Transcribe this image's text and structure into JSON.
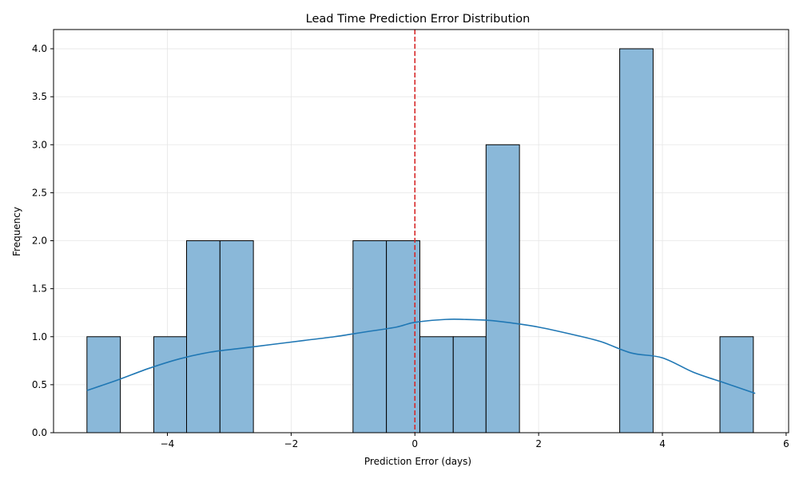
{
  "chart_data": {
    "type": "bar",
    "title": "Lead Time Prediction Error Distribution",
    "xlabel": "Prediction Error (days)",
    "ylabel": "Frequency",
    "xlim": [
      -5.84,
      6.04
    ],
    "ylim": [
      0,
      4.2
    ],
    "x_ticks": [
      -4,
      -2,
      0,
      2,
      4,
      6
    ],
    "x_tick_labels": [
      "−4",
      "−2",
      "0",
      "2",
      "4",
      "6"
    ],
    "y_ticks": [
      0.0,
      0.5,
      1.0,
      1.5,
      2.0,
      2.5,
      3.0,
      3.5,
      4.0
    ],
    "y_tick_labels": [
      "0.0",
      "0.5",
      "1.0",
      "1.5",
      "2.0",
      "2.5",
      "3.0",
      "3.5",
      "4.0"
    ],
    "grid": true,
    "bins": [
      {
        "x0": -5.3,
        "x1": -4.76,
        "count": 1
      },
      {
        "x0": -4.22,
        "x1": -3.69,
        "count": 1
      },
      {
        "x0": -3.69,
        "x1": -3.15,
        "count": 2
      },
      {
        "x0": -3.15,
        "x1": -2.61,
        "count": 2
      },
      {
        "x0": -1.0,
        "x1": -0.46,
        "count": 2
      },
      {
        "x0": -0.46,
        "x1": 0.08,
        "count": 2
      },
      {
        "x0": 0.08,
        "x1": 0.62,
        "count": 1
      },
      {
        "x0": 0.62,
        "x1": 1.15,
        "count": 1
      },
      {
        "x0": 1.15,
        "x1": 1.69,
        "count": 3
      },
      {
        "x0": 3.31,
        "x1": 3.85,
        "count": 4
      },
      {
        "x0": 4.93,
        "x1": 5.47,
        "count": 1
      }
    ],
    "kde": {
      "x": [
        -5.3,
        -4.8,
        -4.3,
        -3.8,
        -3.3,
        -2.8,
        -2.3,
        -1.8,
        -1.3,
        -0.8,
        -0.3,
        0.0,
        0.5,
        0.8,
        1.2,
        1.6,
        2.0,
        2.5,
        3.0,
        3.5,
        4.0,
        4.5,
        5.0,
        5.5
      ],
      "y": [
        0.44,
        0.55,
        0.67,
        0.77,
        0.84,
        0.88,
        0.92,
        0.96,
        1.0,
        1.05,
        1.1,
        1.15,
        1.18,
        1.18,
        1.17,
        1.14,
        1.1,
        1.03,
        0.95,
        0.83,
        0.78,
        0.63,
        0.52,
        0.41
      ]
    },
    "reference_line": {
      "x": 0,
      "style": "dashed",
      "color": "#d62728"
    },
    "colors": {
      "bar_fill": "#8ab8d9",
      "bar_edge": "#000000",
      "kde_line": "#1f77b4",
      "grid": "#e6e6e6"
    }
  }
}
